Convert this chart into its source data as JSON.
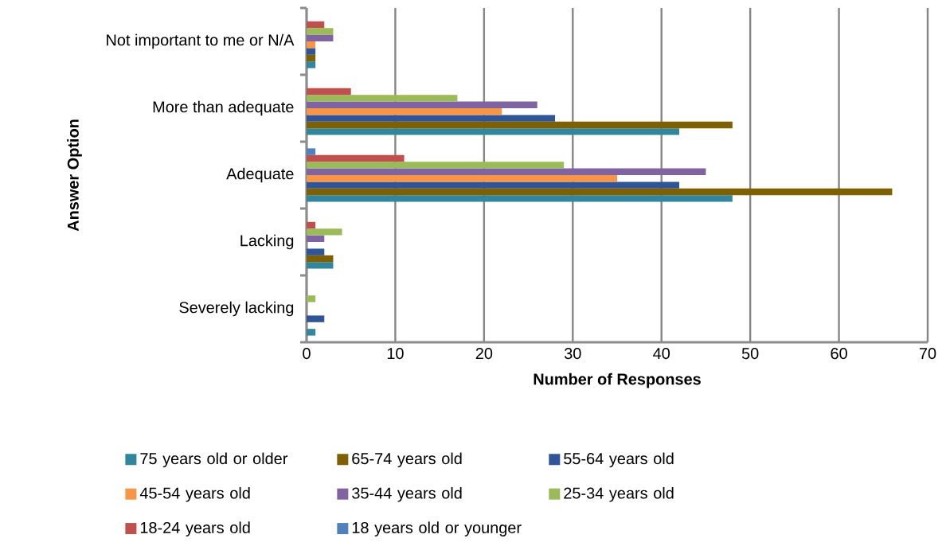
{
  "chart_data": {
    "type": "bar",
    "orientation": "horizontal",
    "xlabel": "Number of Responses",
    "ylabel": "Answer Option",
    "categories": [
      "Not important to me or N/A",
      "More than adequate",
      "Adequate",
      "Lacking",
      "Severely lacking"
    ],
    "series": [
      {
        "name": "75 years old or older",
        "color": "#31859c",
        "values": [
          1,
          42,
          48,
          3,
          1
        ]
      },
      {
        "name": "65-74 years old",
        "color": "#7f6000",
        "values": [
          1,
          48,
          66,
          3,
          0
        ]
      },
      {
        "name": "55-64 years old",
        "color": "#2f5597",
        "values": [
          1,
          28,
          42,
          2,
          2
        ]
      },
      {
        "name": "45-54 years old",
        "color": "#f79646",
        "values": [
          1,
          22,
          35,
          0,
          0
        ]
      },
      {
        "name": "35-44 years old",
        "color": "#8064a2",
        "values": [
          3,
          26,
          45,
          2,
          0
        ]
      },
      {
        "name": "25-34 years old",
        "color": "#9bbb59",
        "values": [
          3,
          17,
          29,
          4,
          1
        ]
      },
      {
        "name": "18-24 years old",
        "color": "#c0504d",
        "values": [
          2,
          5,
          11,
          1,
          0
        ]
      },
      {
        "name": "18 years old or younger",
        "color": "#4f81bd",
        "values": [
          0,
          0,
          1,
          0,
          0
        ]
      }
    ],
    "xlim": [
      0,
      70
    ],
    "xticks": [
      0,
      10,
      20,
      30,
      40,
      50,
      60,
      70
    ],
    "grid": "x",
    "legend": "bottom"
  }
}
